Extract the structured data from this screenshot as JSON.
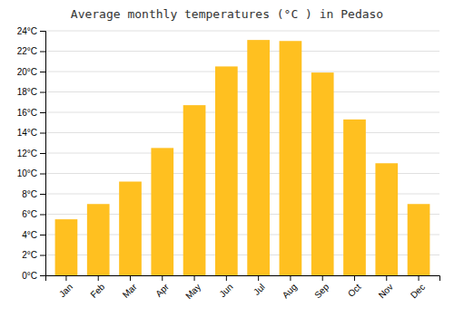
{
  "chart_data": {
    "type": "bar",
    "title": "Average monthly temperatures (°C ) in Pedaso",
    "categories": [
      "Jan",
      "Feb",
      "Mar",
      "Apr",
      "May",
      "Jun",
      "Jul",
      "Aug",
      "Sep",
      "Oct",
      "Nov",
      "Dec"
    ],
    "values": [
      5.5,
      7.0,
      9.2,
      12.5,
      16.7,
      20.5,
      23.1,
      23.0,
      19.9,
      15.3,
      11.0,
      7.0
    ],
    "color": "#FFC020",
    "ylim": [
      0,
      24
    ],
    "yticks": [
      {
        "value": 0,
        "label": "0°C"
      },
      {
        "value": 2,
        "label": "2°C"
      },
      {
        "value": 4,
        "label": "4°C"
      },
      {
        "value": 6,
        "label": "6°C"
      },
      {
        "value": 8,
        "label": "8°C"
      },
      {
        "value": 10,
        "label": "10°C"
      },
      {
        "value": 12,
        "label": "12°C"
      },
      {
        "value": 14,
        "label": "14°C"
      },
      {
        "value": 16,
        "label": "16°C"
      },
      {
        "value": 18,
        "label": "18°C"
      },
      {
        "value": 20,
        "label": "20°C"
      },
      {
        "value": 22,
        "label": "22°C"
      },
      {
        "value": 24,
        "label": "24°C"
      }
    ],
    "grid": true
  }
}
